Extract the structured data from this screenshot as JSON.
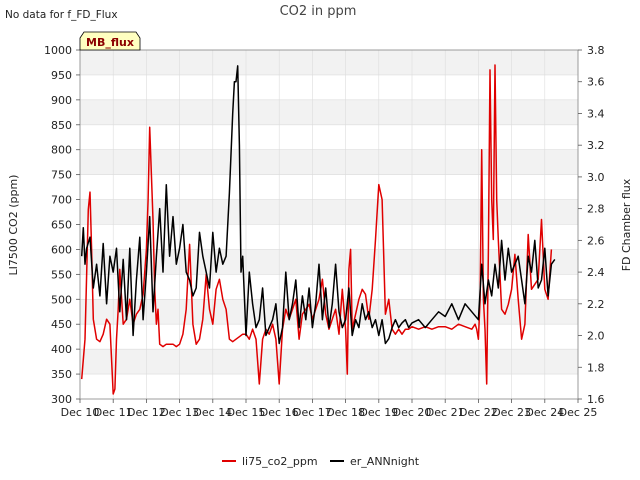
{
  "corner_note": "No data for f_FD_Flux",
  "badge": {
    "label": "MB_flux",
    "bg": "#ffffc0",
    "border": "#000000",
    "text_color": "#8b0000"
  },
  "chart_data": {
    "type": "line",
    "title": "CO2 in ppm",
    "xlabel": "",
    "ylabel": "LI7500 CO2 (ppm)",
    "y2label": "FD Chamber flux",
    "xlim": [
      10,
      25
    ],
    "ylim": [
      300,
      1000
    ],
    "y2lim": [
      1.6,
      3.8
    ],
    "x_ticks": [
      10,
      11,
      12,
      13,
      14,
      15,
      16,
      17,
      18,
      19,
      20,
      21,
      22,
      23,
      24,
      25
    ],
    "x_tick_labels": [
      "Dec 10",
      "Dec 11",
      "Dec 12",
      "Dec 13",
      "Dec 14",
      "Dec 15",
      "Dec 16",
      "Dec 17",
      "Dec 18",
      "Dec 19",
      "Dec 20",
      "Dec 21",
      "Dec 22",
      "Dec 23",
      "Dec 24",
      "Dec 25"
    ],
    "y_ticks": [
      300,
      350,
      400,
      450,
      500,
      550,
      600,
      650,
      700,
      750,
      800,
      850,
      900,
      950,
      1000
    ],
    "y_tick_labels": [
      "300",
      "350",
      "400",
      "450",
      "500",
      "550",
      "600",
      "650",
      "700",
      "750",
      "800",
      "850",
      "900",
      "950",
      "1000"
    ],
    "y2_ticks": [
      1.6,
      1.8,
      2.0,
      2.2,
      2.4,
      2.6,
      2.8,
      3.0,
      3.2,
      3.4,
      3.6,
      3.8
    ],
    "y2_tick_labels": [
      "1.6",
      "1.8",
      "2.0",
      "2.2",
      "2.4",
      "2.6",
      "2.8",
      "3.0",
      "3.2",
      "3.4",
      "3.6",
      "3.8"
    ],
    "band_color": "#f2f2f2",
    "grid_color": "#dcdcdc",
    "legend_position": "bottom-center",
    "series": [
      {
        "name": "li75_co2_ppm",
        "axis": "left",
        "color": "#e00000",
        "x": [
          10.05,
          10.15,
          10.25,
          10.3,
          10.35,
          10.4,
          10.5,
          10.6,
          10.7,
          10.8,
          10.9,
          11.0,
          11.05,
          11.1,
          11.15,
          11.2,
          11.3,
          11.4,
          11.5,
          11.6,
          11.7,
          11.8,
          11.9,
          12.0,
          12.05,
          12.1,
          12.15,
          12.2,
          12.25,
          12.3,
          12.35,
          12.4,
          12.5,
          12.6,
          12.7,
          12.8,
          12.9,
          13.0,
          13.1,
          13.2,
          13.3,
          13.4,
          13.5,
          13.6,
          13.7,
          13.8,
          13.9,
          14.0,
          14.1,
          14.2,
          14.3,
          14.4,
          14.5,
          14.6,
          14.7,
          14.8,
          14.9,
          15.0,
          15.1,
          15.2,
          15.3,
          15.4,
          15.5,
          15.6,
          15.7,
          15.8,
          15.9,
          16.0,
          16.1,
          16.2,
          16.3,
          16.4,
          16.5,
          16.6,
          16.7,
          16.8,
          16.9,
          17.0,
          17.1,
          17.2,
          17.3,
          17.4,
          17.5,
          17.6,
          17.7,
          17.8,
          17.9,
          18.0,
          18.05,
          18.1,
          18.15,
          18.2,
          18.3,
          18.4,
          18.5,
          18.6,
          18.7,
          18.8,
          18.9,
          19.0,
          19.1,
          19.2,
          19.3,
          19.4,
          19.5,
          19.6,
          19.7,
          19.8,
          19.9,
          20.0,
          20.2,
          20.4,
          20.6,
          20.8,
          21.0,
          21.2,
          21.4,
          21.6,
          21.8,
          21.9,
          21.95,
          22.0,
          22.05,
          22.1,
          22.15,
          22.2,
          22.25,
          22.3,
          22.35,
          22.4,
          22.45,
          22.5,
          22.55,
          22.6,
          22.7,
          22.8,
          22.9,
          23.0,
          23.1,
          23.2,
          23.3,
          23.4,
          23.5,
          23.6,
          23.7,
          23.8,
          23.9,
          24.0,
          24.1,
          24.2
        ],
        "values": [
          340,
          420,
          680,
          715,
          600,
          460,
          420,
          415,
          430,
          460,
          450,
          310,
          320,
          420,
          480,
          560,
          450,
          460,
          500,
          450,
          470,
          480,
          510,
          600,
          700,
          845,
          750,
          660,
          520,
          450,
          480,
          410,
          405,
          410,
          410,
          410,
          405,
          410,
          430,
          480,
          610,
          450,
          410,
          420,
          460,
          550,
          480,
          450,
          520,
          540,
          500,
          480,
          420,
          415,
          420,
          425,
          430,
          430,
          420,
          440,
          420,
          330,
          420,
          440,
          430,
          450,
          420,
          330,
          440,
          480,
          460,
          480,
          500,
          420,
          470,
          480,
          490,
          460,
          480,
          500,
          540,
          470,
          440,
          460,
          480,
          430,
          520,
          440,
          350,
          560,
          600,
          440,
          470,
          500,
          520,
          510,
          460,
          520,
          620,
          730,
          700,
          470,
          500,
          440,
          430,
          440,
          430,
          440,
          440,
          445,
          440,
          445,
          440,
          445,
          445,
          440,
          450,
          445,
          440,
          450,
          440,
          420,
          500,
          800,
          500,
          440,
          330,
          600,
          960,
          700,
          620,
          970,
          700,
          620,
          480,
          470,
          490,
          520,
          590,
          500,
          420,
          450,
          630,
          520,
          530,
          540,
          660,
          520,
          500,
          600
        ]
      },
      {
        "name": "er_ANNnight",
        "axis": "right",
        "color": "#000000",
        "x": [
          10.05,
          10.1,
          10.15,
          10.2,
          10.3,
          10.4,
          10.5,
          10.6,
          10.7,
          10.8,
          10.9,
          11.0,
          11.1,
          11.2,
          11.3,
          11.4,
          11.5,
          11.6,
          11.7,
          11.8,
          11.9,
          12.0,
          12.1,
          12.2,
          12.3,
          12.4,
          12.5,
          12.6,
          12.7,
          12.8,
          12.9,
          13.0,
          13.1,
          13.2,
          13.3,
          13.4,
          13.5,
          13.6,
          13.7,
          13.8,
          13.9,
          14.0,
          14.1,
          14.2,
          14.3,
          14.4,
          14.5,
          14.6,
          14.65,
          14.7,
          14.75,
          14.8,
          14.85,
          14.9,
          15.0,
          15.1,
          15.2,
          15.3,
          15.4,
          15.5,
          15.6,
          15.7,
          15.8,
          15.9,
          16.0,
          16.1,
          16.2,
          16.3,
          16.4,
          16.5,
          16.6,
          16.7,
          16.8,
          16.9,
          17.0,
          17.1,
          17.2,
          17.3,
          17.4,
          17.5,
          17.6,
          17.7,
          17.8,
          17.9,
          18.0,
          18.1,
          18.2,
          18.3,
          18.4,
          18.5,
          18.6,
          18.7,
          18.8,
          18.9,
          19.0,
          19.1,
          19.2,
          19.3,
          19.4,
          19.5,
          19.6,
          19.7,
          19.8,
          19.9,
          20.0,
          20.2,
          20.4,
          20.6,
          20.8,
          21.0,
          21.2,
          21.4,
          21.6,
          21.8,
          22.0,
          22.1,
          22.2,
          22.3,
          22.4,
          22.5,
          22.6,
          22.7,
          22.8,
          22.9,
          23.0,
          23.1,
          23.2,
          23.3,
          23.4,
          23.5,
          23.6,
          23.7,
          23.8,
          23.9,
          24.0,
          24.1,
          24.2,
          24.3
        ],
        "values": [
          2.5,
          2.68,
          2.45,
          2.55,
          2.62,
          2.3,
          2.45,
          2.25,
          2.58,
          2.2,
          2.5,
          2.4,
          2.55,
          2.15,
          2.48,
          2.1,
          2.55,
          2.0,
          2.35,
          2.62,
          2.1,
          2.4,
          2.75,
          2.15,
          2.5,
          2.8,
          2.4,
          2.95,
          2.5,
          2.75,
          2.45,
          2.55,
          2.7,
          2.4,
          2.35,
          2.25,
          2.3,
          2.65,
          2.5,
          2.4,
          2.3,
          2.65,
          2.4,
          2.55,
          2.45,
          2.5,
          2.9,
          3.4,
          3.6,
          3.6,
          3.7,
          3.2,
          2.4,
          2.5,
          2.0,
          2.4,
          2.2,
          2.05,
          2.1,
          2.3,
          2.0,
          2.05,
          2.1,
          2.2,
          1.95,
          2.05,
          2.4,
          2.1,
          2.2,
          2.35,
          2.05,
          2.25,
          2.1,
          2.3,
          2.05,
          2.2,
          2.45,
          2.1,
          2.3,
          2.05,
          2.2,
          2.45,
          2.15,
          2.05,
          2.1,
          2.3,
          2.0,
          2.1,
          2.05,
          2.2,
          2.1,
          2.15,
          2.05,
          2.1,
          2.0,
          2.1,
          1.95,
          1.98,
          2.05,
          2.1,
          2.05,
          2.08,
          2.1,
          2.05,
          2.08,
          2.1,
          2.05,
          2.1,
          2.15,
          2.12,
          2.2,
          2.1,
          2.2,
          2.15,
          2.1,
          2.45,
          2.2,
          2.35,
          2.25,
          2.45,
          2.3,
          2.6,
          2.35,
          2.55,
          2.4,
          2.45,
          2.5,
          2.35,
          2.2,
          2.5,
          2.4,
          2.6,
          2.3,
          2.35,
          2.55,
          2.25,
          2.45,
          2.48
        ]
      }
    ]
  }
}
